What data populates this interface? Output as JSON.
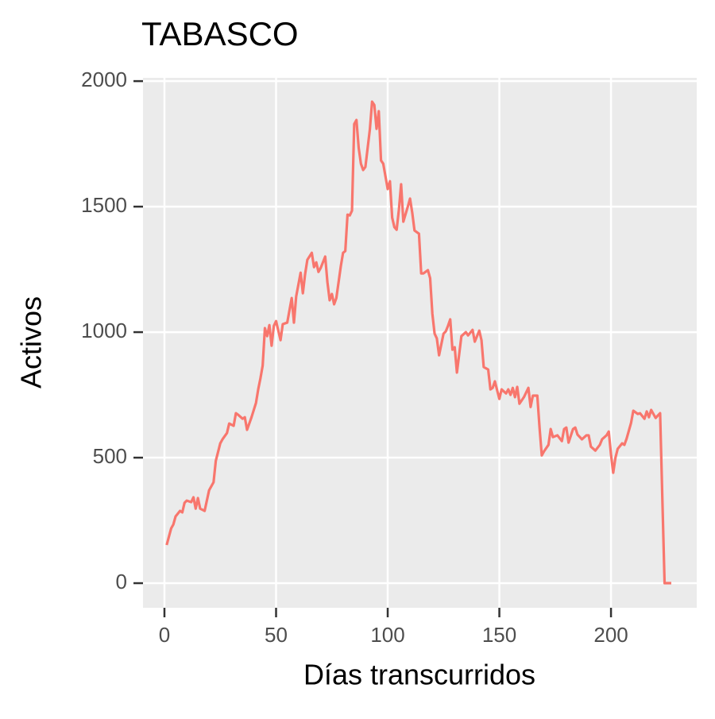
{
  "chart_data": {
    "type": "line",
    "title": "TABASCO",
    "x_label": "Días transcurridos",
    "y_label": "Activos",
    "xlim": [
      -9.6,
      238.4
    ],
    "ylim": [
      -98,
      2013
    ],
    "xticks": [
      0,
      50,
      100,
      150,
      200
    ],
    "yticks": [
      0,
      500,
      1000,
      1500,
      2000
    ],
    "grid": true,
    "series": [
      {
        "name": "Activos",
        "color": "#F8766D",
        "x": [
          1,
          3,
          4,
          5,
          7,
          8,
          9,
          10,
          12,
          13,
          14,
          15,
          16,
          18,
          20,
          22,
          23,
          25,
          26,
          28,
          29,
          31,
          32,
          33,
          35,
          36,
          37,
          39,
          41,
          42,
          43,
          44,
          45,
          46,
          47,
          48,
          49,
          50,
          52,
          53,
          55,
          57,
          58,
          59,
          61,
          62,
          63,
          64,
          66,
          67,
          68,
          69,
          70,
          72,
          73,
          74,
          75,
          76,
          77,
          79,
          80,
          81,
          82,
          83,
          84,
          85,
          86,
          87,
          88,
          89,
          90,
          92,
          93,
          94,
          95,
          96,
          97,
          98,
          100,
          101,
          102,
          103,
          104,
          105,
          106,
          107,
          109,
          110,
          111,
          112,
          114,
          115,
          116,
          118,
          119,
          120,
          121,
          122,
          123,
          125,
          126,
          127,
          128,
          129,
          130,
          131,
          132,
          133,
          135,
          136,
          138,
          139,
          141,
          142,
          143,
          145,
          146,
          147,
          148,
          150,
          151,
          153,
          154,
          155,
          156,
          157,
          158,
          159,
          161,
          163,
          164,
          165,
          167,
          168,
          169,
          170,
          172,
          173,
          174,
          176,
          178,
          179,
          180,
          181,
          183,
          184,
          185,
          187,
          189,
          190,
          191,
          193,
          195,
          196,
          198,
          199,
          200,
          201,
          202,
          203,
          205,
          206,
          207,
          209,
          210,
          212,
          213,
          215,
          216,
          217,
          218,
          220,
          221,
          222,
          224,
          227
        ],
        "values": [
          152,
          218,
          234,
          266,
          288,
          282,
          320,
          329,
          323,
          342,
          297,
          339,
          297,
          288,
          370,
          402,
          487,
          557,
          573,
          598,
          636,
          627,
          677,
          671,
          655,
          661,
          611,
          661,
          718,
          772,
          816,
          867,
          1016,
          984,
          1028,
          946,
          1025,
          1044,
          968,
          1032,
          1038,
          1136,
          1038,
          1142,
          1237,
          1155,
          1231,
          1288,
          1316,
          1259,
          1278,
          1240,
          1256,
          1301,
          1199,
          1127,
          1152,
          1111,
          1136,
          1263,
          1316,
          1323,
          1468,
          1465,
          1484,
          1829,
          1845,
          1734,
          1671,
          1646,
          1658,
          1807,
          1918,
          1905,
          1810,
          1880,
          1684,
          1671,
          1570,
          1601,
          1456,
          1418,
          1408,
          1487,
          1589,
          1440,
          1500,
          1532,
          1475,
          1405,
          1392,
          1234,
          1234,
          1247,
          1215,
          1073,
          994,
          975,
          908,
          994,
          1003,
          1025,
          1051,
          930,
          940,
          839,
          911,
          984,
          1000,
          987,
          1009,
          962,
          1006,
          968,
          861,
          851,
          772,
          778,
          804,
          734,
          772,
          756,
          772,
          750,
          778,
          741,
          782,
          715,
          741,
          778,
          702,
          747,
          747,
          620,
          509,
          525,
          551,
          614,
          582,
          589,
          566,
          614,
          620,
          560,
          614,
          620,
          592,
          573,
          589,
          589,
          544,
          528,
          551,
          573,
          589,
          604,
          513,
          440,
          500,
          535,
          557,
          551,
          576,
          639,
          687,
          674,
          677,
          655,
          684,
          661,
          690,
          658,
          668,
          677,
          0,
          0
        ]
      }
    ]
  }
}
